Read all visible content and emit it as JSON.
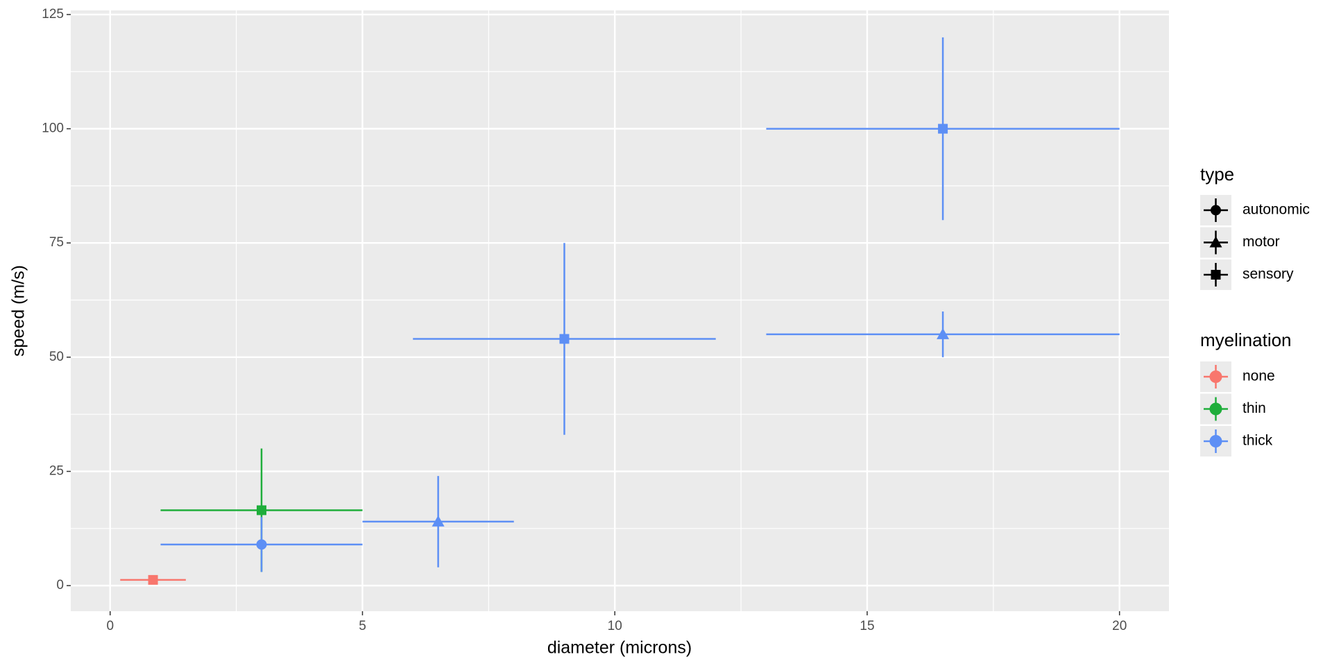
{
  "chart_data": {
    "type": "scatter",
    "xlabel": "diameter (microns)",
    "ylabel": "speed (m/s)",
    "xlim": [
      -0.78,
      20.98
    ],
    "ylim": [
      -5.6,
      125.9
    ],
    "xticks": [
      0,
      5,
      10,
      15,
      20
    ],
    "yticks": [
      0,
      25,
      50,
      75,
      100,
      125
    ],
    "xminor": [
      2.5,
      7.5,
      12.5,
      17.5
    ],
    "yminor": [
      12.5,
      37.5,
      62.5,
      87.5,
      112.5
    ],
    "grid": true,
    "shape_legend": {
      "title": "type",
      "entries": [
        "autonomic",
        "motor",
        "sensory"
      ],
      "shapes": [
        "circle",
        "triangle",
        "square"
      ]
    },
    "color_legend_title": "myelination",
    "series": [
      {
        "name": "none",
        "color": "#f8766d",
        "x": [
          0.85
        ],
        "values": [
          1.25
        ],
        "types": [
          "sensory"
        ],
        "x_low": [
          0.2
        ],
        "x_high": [
          1.5
        ],
        "y_low": [
          0.5
        ],
        "y_high": [
          2
        ]
      },
      {
        "name": "thin",
        "color": "#1fae3b",
        "x": [
          3
        ],
        "values": [
          16.5
        ],
        "types": [
          "sensory"
        ],
        "x_low": [
          1
        ],
        "x_high": [
          5
        ],
        "y_low": [
          3
        ],
        "y_high": [
          30
        ]
      },
      {
        "name": "thick",
        "color": "#5d8ff5",
        "x": [
          3,
          6.5,
          9,
          16.5,
          16.5
        ],
        "values": [
          9,
          14,
          54,
          55,
          100
        ],
        "types": [
          "autonomic",
          "motor",
          "sensory",
          "motor",
          "sensory"
        ],
        "x_low": [
          1,
          5,
          6,
          13,
          13
        ],
        "x_high": [
          5,
          8,
          12,
          20,
          20
        ],
        "y_low": [
          3,
          4,
          33,
          50,
          80
        ],
        "y_high": [
          15,
          24,
          75,
          60,
          120
        ]
      }
    ]
  }
}
